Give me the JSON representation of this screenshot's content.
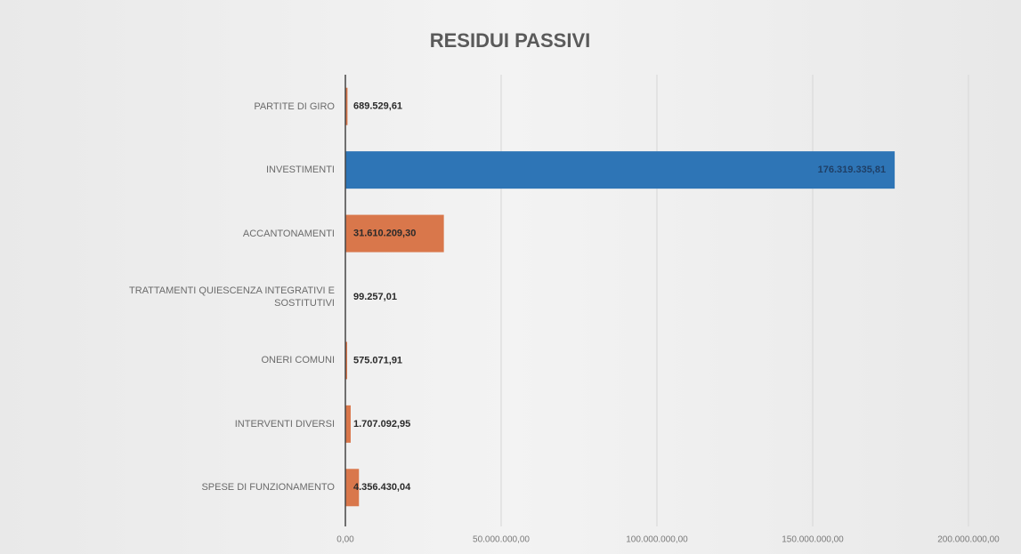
{
  "chart_data": {
    "type": "bar",
    "orientation": "horizontal",
    "title": "RESIDUI PASSIVI",
    "categories": [
      "PARTITE DI GIRO",
      "INVESTIMENTI",
      "ACCANTONAMENTI",
      "TRATTAMENTI QUIESCENZA INTEGRATIVI E SOSTITUTIVI",
      "ONERI COMUNI",
      "INTERVENTI DIVERSI",
      "SPESE DI FUNZIONAMENTO"
    ],
    "values": [
      689529.61,
      176319335.81,
      31610209.3,
      99257.01,
      575071.91,
      1707092.95,
      4356430.04
    ],
    "value_labels": [
      "689.529,61",
      "176.319.335,81",
      "31.610.209,30",
      "99.257,01",
      "575.071,91",
      "1.707.092,95",
      "4.356.430,04"
    ],
    "colors": [
      "#d9774b",
      "#2e75b6",
      "#d9774b",
      "#d9774b",
      "#d9774b",
      "#d9774b",
      "#d9774b"
    ],
    "xlim": [
      0,
      200000000
    ],
    "xticks": [
      {
        "value": 0,
        "label": "0,00"
      },
      {
        "value": 50000000,
        "label": "50.000.000,00"
      },
      {
        "value": 100000000,
        "label": "100.000.000,00"
      },
      {
        "value": 150000000,
        "label": "150.000.000,00"
      },
      {
        "value": 200000000,
        "label": "200.000.000,00"
      }
    ],
    "grid": true
  }
}
